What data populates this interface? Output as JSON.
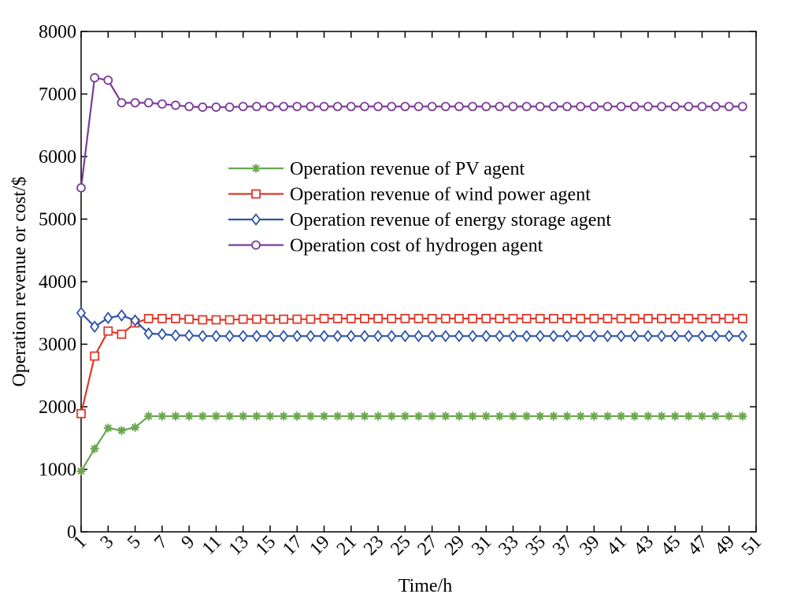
{
  "chart_data": {
    "type": "line",
    "title": "",
    "xlabel": "Time/h",
    "ylabel": "Operation revenue or cost/$",
    "xlim": [
      1,
      51
    ],
    "ylim": [
      0,
      8000
    ],
    "x_ticks": [
      1,
      3,
      5,
      7,
      9,
      11,
      13,
      15,
      17,
      19,
      21,
      23,
      25,
      27,
      29,
      31,
      33,
      35,
      37,
      39,
      41,
      43,
      45,
      47,
      49,
      51
    ],
    "y_ticks": [
      0,
      1000,
      2000,
      3000,
      4000,
      5000,
      6000,
      7000,
      8000
    ],
    "legend_position": "center",
    "x": [
      1,
      2,
      3,
      4,
      5,
      6,
      7,
      8,
      9,
      10,
      11,
      12,
      13,
      14,
      15,
      16,
      17,
      18,
      19,
      20,
      21,
      22,
      23,
      24,
      25,
      26,
      27,
      28,
      29,
      30,
      31,
      32,
      33,
      34,
      35,
      36,
      37,
      38,
      39,
      40,
      41,
      42,
      43,
      44,
      45,
      46,
      47,
      48,
      49,
      50
    ],
    "series": [
      {
        "name": "Operation revenue of PV agent",
        "color": "#6aa84f",
        "marker": "asterisk",
        "values": [
          970,
          1330,
          1660,
          1620,
          1670,
          1850,
          1850,
          1850,
          1850,
          1850,
          1850,
          1850,
          1850,
          1850,
          1850,
          1850,
          1850,
          1850,
          1850,
          1850,
          1850,
          1850,
          1850,
          1850,
          1850,
          1850,
          1850,
          1850,
          1850,
          1850,
          1850,
          1850,
          1850,
          1850,
          1850,
          1850,
          1850,
          1850,
          1850,
          1850,
          1850,
          1850,
          1850,
          1850,
          1850,
          1850,
          1850,
          1850,
          1850,
          1850
        ]
      },
      {
        "name": "Operation revenue of wind power agent",
        "color": "#e0392b",
        "marker": "square",
        "values": [
          1890,
          2810,
          3210,
          3160,
          3340,
          3410,
          3410,
          3410,
          3400,
          3390,
          3390,
          3390,
          3400,
          3400,
          3400,
          3400,
          3400,
          3400,
          3410,
          3410,
          3410,
          3410,
          3410,
          3410,
          3410,
          3410,
          3410,
          3410,
          3410,
          3410,
          3410,
          3410,
          3410,
          3410,
          3410,
          3410,
          3410,
          3410,
          3410,
          3410,
          3410,
          3410,
          3410,
          3410,
          3410,
          3410,
          3410,
          3410,
          3410,
          3410
        ]
      },
      {
        "name": "Operation revenue of energy storage agent",
        "color": "#2b54a8",
        "marker": "diamond",
        "values": [
          3500,
          3280,
          3420,
          3460,
          3380,
          3170,
          3160,
          3140,
          3140,
          3130,
          3130,
          3130,
          3130,
          3130,
          3130,
          3130,
          3130,
          3130,
          3130,
          3130,
          3130,
          3130,
          3130,
          3130,
          3130,
          3130,
          3130,
          3130,
          3130,
          3130,
          3130,
          3130,
          3130,
          3130,
          3130,
          3130,
          3130,
          3130,
          3130,
          3130,
          3130,
          3130,
          3130,
          3130,
          3130,
          3130,
          3130,
          3130,
          3130,
          3130
        ]
      },
      {
        "name": "Operation cost of hydrogen agent",
        "color": "#7b3c96",
        "marker": "circle",
        "values": [
          5500,
          7260,
          7220,
          6860,
          6860,
          6860,
          6840,
          6820,
          6800,
          6790,
          6790,
          6790,
          6800,
          6800,
          6800,
          6800,
          6800,
          6800,
          6800,
          6800,
          6800,
          6800,
          6800,
          6800,
          6800,
          6800,
          6800,
          6800,
          6800,
          6800,
          6800,
          6800,
          6800,
          6800,
          6800,
          6800,
          6800,
          6800,
          6800,
          6800,
          6800,
          6800,
          6800,
          6800,
          6800,
          6800,
          6800,
          6800,
          6800,
          6800
        ]
      }
    ]
  }
}
